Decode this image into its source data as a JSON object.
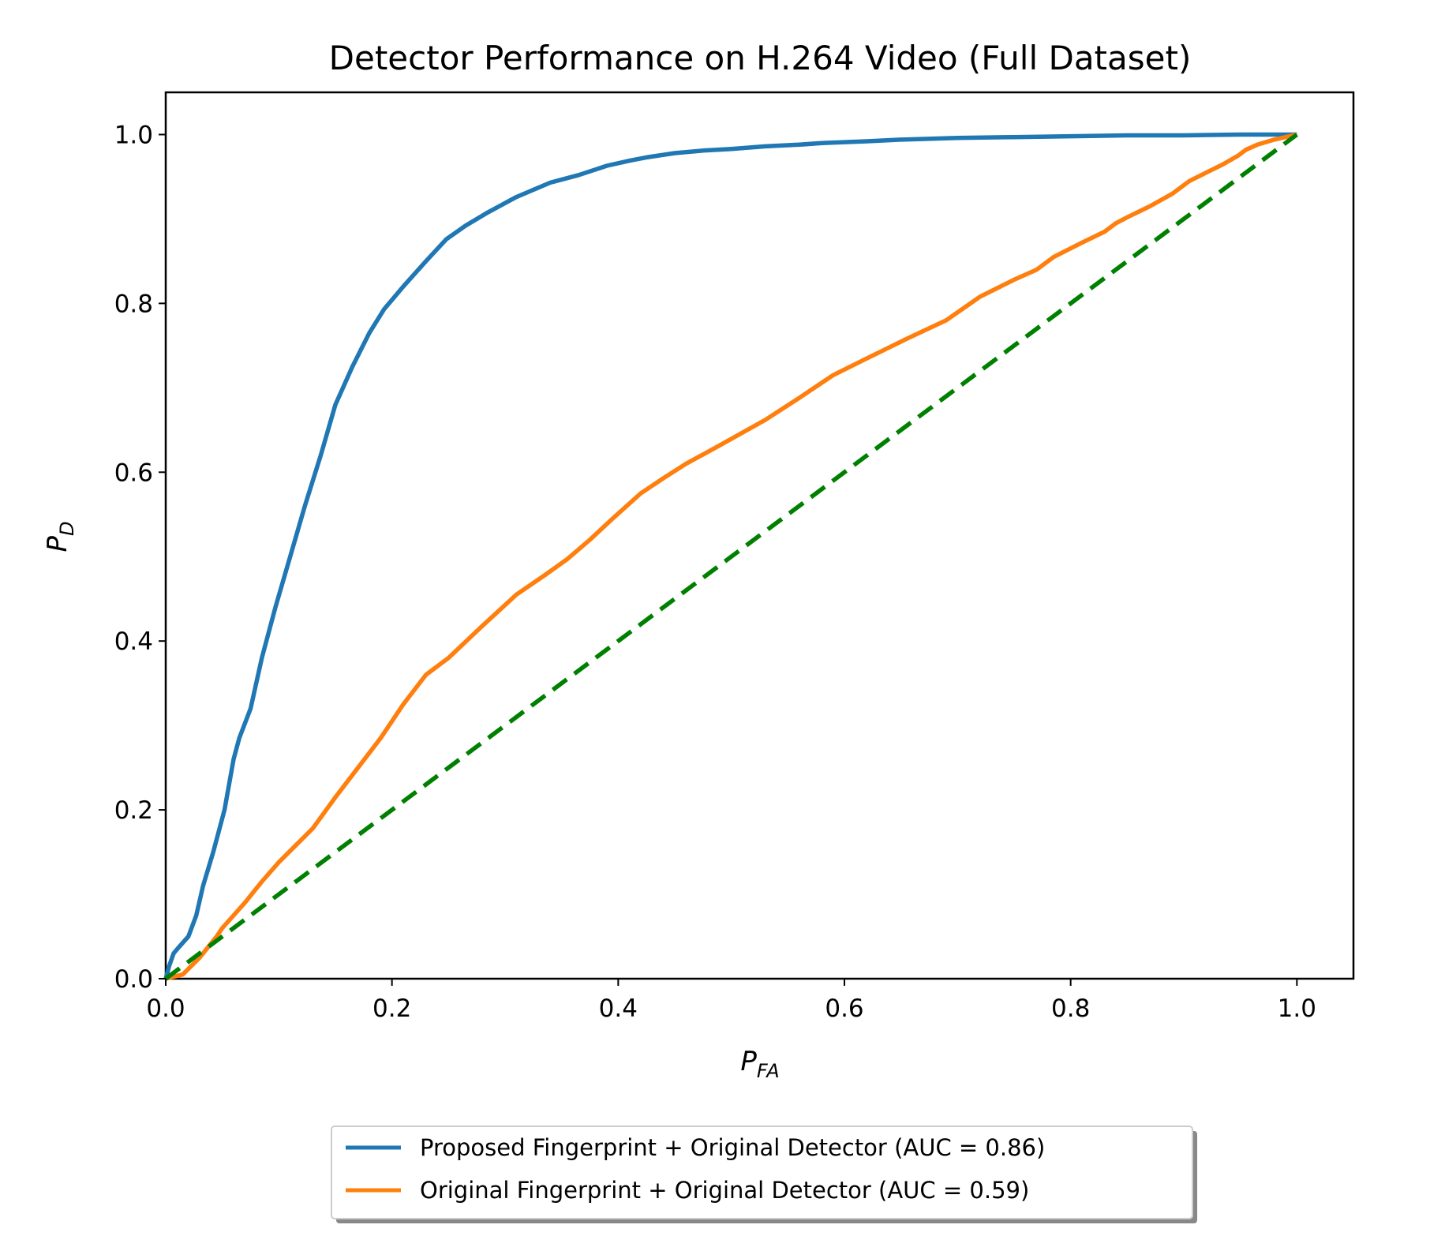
{
  "chart_data": {
    "type": "line",
    "title": "Detector Performance on H.264 Video (Full Dataset)",
    "xlabel": {
      "main": "P",
      "sub": "FA"
    },
    "ylabel": {
      "main": "P",
      "sub": "D"
    },
    "xlim": [
      0.0,
      1.05
    ],
    "ylim": [
      0.0,
      1.05
    ],
    "xticks": [
      "0.0",
      "0.2",
      "0.4",
      "0.6",
      "0.8",
      "1.0"
    ],
    "yticks": [
      "0.0",
      "0.2",
      "0.4",
      "0.6",
      "0.8",
      "1.0"
    ],
    "grid": false,
    "legend_position": "bottom-center",
    "series": [
      {
        "name": "Proposed Fingerprint + Original Detector (AUC = 0.86)",
        "color": "#1f77b4",
        "style": "solid",
        "x": [
          0.0,
          0.003,
          0.007,
          0.012,
          0.02,
          0.027,
          0.033,
          0.042,
          0.052,
          0.06,
          0.065,
          0.075,
          0.085,
          0.097,
          0.11,
          0.123,
          0.137,
          0.15,
          0.165,
          0.18,
          0.193,
          0.21,
          0.23,
          0.248,
          0.265,
          0.285,
          0.31,
          0.34,
          0.365,
          0.39,
          0.41,
          0.425,
          0.45,
          0.475,
          0.5,
          0.53,
          0.56,
          0.58,
          0.62,
          0.65,
          0.7,
          0.75,
          0.8,
          0.85,
          0.9,
          0.95,
          1.0
        ],
        "y": [
          0.0,
          0.015,
          0.03,
          0.038,
          0.05,
          0.075,
          0.11,
          0.15,
          0.2,
          0.26,
          0.285,
          0.32,
          0.38,
          0.44,
          0.5,
          0.56,
          0.62,
          0.68,
          0.725,
          0.765,
          0.793,
          0.82,
          0.85,
          0.876,
          0.892,
          0.908,
          0.926,
          0.943,
          0.952,
          0.963,
          0.969,
          0.973,
          0.978,
          0.981,
          0.983,
          0.986,
          0.988,
          0.99,
          0.992,
          0.994,
          0.996,
          0.997,
          0.998,
          0.999,
          0.999,
          1.0,
          1.0
        ]
      },
      {
        "name": "Original Fingerprint + Original Detector (AUC = 0.59)",
        "color": "#ff7f0e",
        "style": "solid",
        "x": [
          0.0,
          0.015,
          0.03,
          0.045,
          0.05,
          0.07,
          0.085,
          0.1,
          0.115,
          0.13,
          0.15,
          0.17,
          0.19,
          0.21,
          0.23,
          0.25,
          0.28,
          0.31,
          0.335,
          0.355,
          0.375,
          0.395,
          0.42,
          0.44,
          0.46,
          0.49,
          0.53,
          0.56,
          0.59,
          0.62,
          0.655,
          0.69,
          0.72,
          0.75,
          0.77,
          0.785,
          0.81,
          0.83,
          0.84,
          0.85,
          0.87,
          0.89,
          0.905,
          0.92,
          0.935,
          0.948,
          0.955,
          0.965,
          0.98,
          1.0
        ],
        "y": [
          0.0,
          0.005,
          0.025,
          0.05,
          0.06,
          0.09,
          0.115,
          0.138,
          0.158,
          0.178,
          0.215,
          0.25,
          0.285,
          0.325,
          0.36,
          0.38,
          0.418,
          0.455,
          0.478,
          0.497,
          0.52,
          0.545,
          0.575,
          0.593,
          0.61,
          0.632,
          0.662,
          0.688,
          0.715,
          0.735,
          0.758,
          0.78,
          0.808,
          0.828,
          0.84,
          0.855,
          0.872,
          0.885,
          0.895,
          0.902,
          0.915,
          0.93,
          0.945,
          0.955,
          0.965,
          0.975,
          0.982,
          0.988,
          0.994,
          1.0
        ]
      },
      {
        "name": "",
        "color": "#008000",
        "style": "dashed",
        "x": [
          0.0,
          1.0
        ],
        "y": [
          0.0,
          1.0
        ]
      }
    ]
  }
}
